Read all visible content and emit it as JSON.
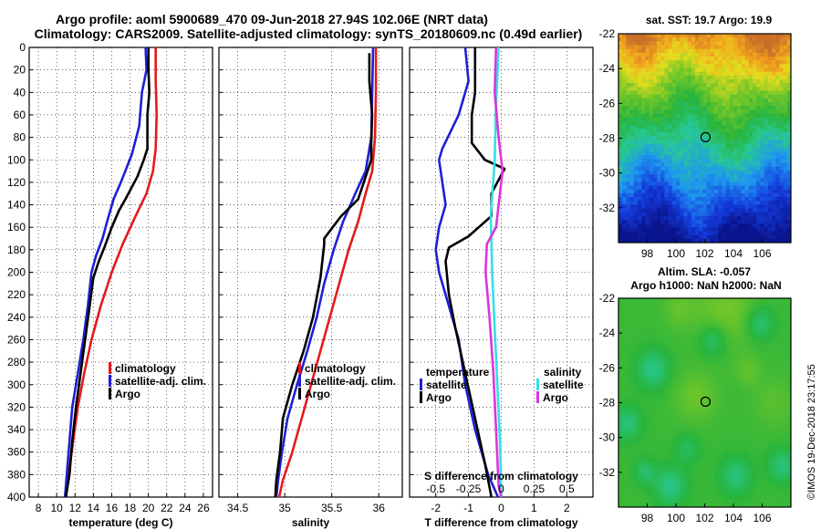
{
  "header": {
    "title_line1": "Argo profile: aoml 5900689_470 09-Jun-2018 27.94S 102.06E (NRT data)",
    "title_line2": "Climatology: CARS2009. Satellite-adjusted climatology: synTS_20180609.nc (0.49d earlier)"
  },
  "credit": "©IMOS 19-Dec-2018 23:17:55",
  "colors": {
    "climatology": "#e41a1c",
    "satellite_adj": "#1f1fd6",
    "argo": "#000000",
    "satellite_s": "#33e0e6",
    "argo_s": "#dd33dd"
  },
  "chart_data": [
    {
      "id": "temperature_profile",
      "type": "line",
      "xlabel": "temperature (deg C)",
      "ylabel": "depth",
      "xlim": [
        7,
        27
      ],
      "ylim": [
        400,
        0
      ],
      "xticks": [
        8,
        10,
        12,
        14,
        16,
        18,
        20,
        22,
        24,
        26
      ],
      "yticks": [
        0,
        20,
        40,
        60,
        80,
        100,
        120,
        140,
        160,
        180,
        200,
        220,
        240,
        260,
        280,
        300,
        320,
        340,
        360,
        380,
        400
      ],
      "legend": [
        "climatology",
        "satellite-adj. clim.",
        "Argo"
      ],
      "series": [
        {
          "name": "climatology",
          "color": "#e41a1c",
          "points": [
            [
              20.8,
              0
            ],
            [
              20.8,
              30
            ],
            [
              20.9,
              60
            ],
            [
              20.8,
              90
            ],
            [
              20.5,
              110
            ],
            [
              19.8,
              130
            ],
            [
              18.6,
              150
            ],
            [
              17.2,
              175
            ],
            [
              16.0,
              200
            ],
            [
              14.8,
              230
            ],
            [
              13.8,
              260
            ],
            [
              13.0,
              290
            ],
            [
              12.3,
              320
            ],
            [
              11.8,
              350
            ],
            [
              11.3,
              380
            ],
            [
              11.0,
              400
            ]
          ]
        },
        {
          "name": "satellite-adj. clim.",
          "color": "#1f1fd6",
          "points": [
            [
              19.7,
              0
            ],
            [
              19.8,
              20
            ],
            [
              19.3,
              40
            ],
            [
              19.0,
              70
            ],
            [
              18.2,
              95
            ],
            [
              17.0,
              120
            ],
            [
              16.2,
              135
            ],
            [
              15.5,
              155
            ],
            [
              15.0,
              170
            ],
            [
              14.3,
              185
            ],
            [
              13.8,
              200
            ],
            [
              13.4,
              230
            ],
            [
              12.9,
              260
            ],
            [
              12.3,
              290
            ],
            [
              11.7,
              320
            ],
            [
              11.4,
              350
            ],
            [
              11.1,
              380
            ],
            [
              10.9,
              400
            ]
          ]
        },
        {
          "name": "Argo",
          "color": "#000000",
          "points": [
            [
              20.0,
              0
            ],
            [
              20.0,
              20
            ],
            [
              20.1,
              40
            ],
            [
              19.9,
              60
            ],
            [
              19.9,
              90
            ],
            [
              19.5,
              100
            ],
            [
              18.8,
              115
            ],
            [
              17.5,
              135
            ],
            [
              16.8,
              145
            ],
            [
              16.0,
              160
            ],
            [
              15.2,
              178
            ],
            [
              14.6,
              190
            ],
            [
              14.0,
              205
            ],
            [
              13.6,
              230
            ],
            [
              13.1,
              260
            ],
            [
              12.6,
              290
            ],
            [
              12.1,
              320
            ],
            [
              11.7,
              350
            ],
            [
              11.4,
              380
            ],
            [
              11.0,
              400
            ]
          ]
        }
      ]
    },
    {
      "id": "salinity_profile",
      "type": "line",
      "xlabel": "salinity",
      "ylabel": "depth",
      "xlim": [
        34.3,
        36.25
      ],
      "ylim": [
        400,
        0
      ],
      "xticks": [
        34.5,
        35,
        35.5,
        36
      ],
      "xticklabels": [
        "34.5",
        "35",
        "35.5",
        "36"
      ],
      "legend": [
        "climatology",
        "satellite-adj. clim.",
        "Argo"
      ],
      "series": [
        {
          "name": "climatology",
          "color": "#e41a1c",
          "points": [
            [
              35.97,
              0
            ],
            [
              35.97,
              40
            ],
            [
              35.96,
              80
            ],
            [
              35.93,
              110
            ],
            [
              35.86,
              130
            ],
            [
              35.78,
              155
            ],
            [
              35.68,
              180
            ],
            [
              35.58,
              210
            ],
            [
              35.48,
              240
            ],
            [
              35.38,
              270
            ],
            [
              35.28,
              300
            ],
            [
              35.18,
              330
            ],
            [
              35.08,
              360
            ],
            [
              34.98,
              385
            ],
            [
              34.94,
              400
            ]
          ]
        },
        {
          "name": "satellite-adj. clim.",
          "color": "#1f1fd6",
          "points": [
            [
              35.94,
              0
            ],
            [
              35.93,
              40
            ],
            [
              35.92,
              80
            ],
            [
              35.86,
              110
            ],
            [
              35.75,
              130
            ],
            [
              35.62,
              155
            ],
            [
              35.52,
              180
            ],
            [
              35.42,
              210
            ],
            [
              35.34,
              240
            ],
            [
              35.24,
              270
            ],
            [
              35.13,
              300
            ],
            [
              35.03,
              330
            ],
            [
              34.97,
              360
            ],
            [
              34.93,
              385
            ],
            [
              34.91,
              400
            ]
          ]
        },
        {
          "name": "Argo",
          "color": "#000000",
          "points": [
            [
              35.9,
              5
            ],
            [
              35.9,
              30
            ],
            [
              35.93,
              60
            ],
            [
              35.92,
              85
            ],
            [
              35.92,
              100
            ],
            [
              35.82,
              125
            ],
            [
              35.78,
              135
            ],
            [
              35.6,
              150
            ],
            [
              35.42,
              170
            ],
            [
              35.42,
              175
            ],
            [
              35.38,
              205
            ],
            [
              35.3,
              240
            ],
            [
              35.2,
              270
            ],
            [
              35.08,
              300
            ],
            [
              34.98,
              330
            ],
            [
              34.95,
              360
            ],
            [
              34.91,
              385
            ],
            [
              34.9,
              400
            ]
          ]
        }
      ]
    },
    {
      "id": "difference_profile",
      "type": "line",
      "xlabel": "T difference from climatology",
      "x2label": "S difference from climatology",
      "ylabel": "depth",
      "xlim": [
        -2.8,
        2.8
      ],
      "ylim": [
        400,
        0
      ],
      "xticks": [
        -2,
        -1,
        0,
        1,
        2
      ],
      "x2ticks": [
        -0.5,
        -0.25,
        0,
        0.25,
        0.5
      ],
      "x2ticklabels": [
        "-0.5",
        "-0.25",
        "0",
        "0.25",
        "0.5"
      ],
      "x2lim": [
        -0.7,
        0.7
      ],
      "legend_temperature": {
        "title": "temperature",
        "entries": [
          "satellite",
          "Argo"
        ]
      },
      "legend_salinity": {
        "title": "salinity",
        "entries": [
          "satellite",
          "Argo"
        ]
      },
      "series": [
        {
          "name": "temperature satellite",
          "axis": "T",
          "color": "#1f1fd6",
          "points": [
            [
              -1.1,
              0
            ],
            [
              -1.0,
              30
            ],
            [
              -1.3,
              60
            ],
            [
              -1.8,
              90
            ],
            [
              -1.9,
              100
            ],
            [
              -1.7,
              140
            ],
            [
              -1.9,
              160
            ],
            [
              -2.0,
              180
            ],
            [
              -1.9,
              200
            ],
            [
              -1.6,
              230
            ],
            [
              -1.3,
              260
            ],
            [
              -1.1,
              300
            ],
            [
              -0.8,
              340
            ],
            [
              -0.4,
              380
            ],
            [
              -0.1,
              400
            ]
          ]
        },
        {
          "name": "temperature Argo",
          "axis": "T",
          "color": "#000000",
          "points": [
            [
              -0.8,
              0
            ],
            [
              -0.8,
              20
            ],
            [
              -0.8,
              40
            ],
            [
              -0.9,
              60
            ],
            [
              -0.9,
              85
            ],
            [
              -0.5,
              100
            ],
            [
              0.1,
              108
            ],
            [
              -0.3,
              130
            ],
            [
              -0.3,
              150
            ],
            [
              -1.0,
              168
            ],
            [
              -1.6,
              178
            ],
            [
              -1.7,
              190
            ],
            [
              -1.6,
              220
            ],
            [
              -1.4,
              250
            ],
            [
              -1.1,
              290
            ],
            [
              -0.8,
              330
            ],
            [
              -0.5,
              370
            ],
            [
              -0.3,
              400
            ]
          ]
        },
        {
          "name": "salinity satellite",
          "axis": "S",
          "color": "#33e0e6",
          "points": [
            [
              -0.02,
              0
            ],
            [
              -0.04,
              50
            ],
            [
              -0.05,
              100
            ],
            [
              -0.08,
              150
            ],
            [
              -0.07,
              200
            ],
            [
              -0.05,
              250
            ],
            [
              -0.03,
              300
            ],
            [
              -0.01,
              350
            ],
            [
              0.0,
              400
            ]
          ]
        },
        {
          "name": "salinity Argo",
          "axis": "S",
          "color": "#dd33dd",
          "points": [
            [
              -0.04,
              0
            ],
            [
              -0.05,
              40
            ],
            [
              -0.02,
              80
            ],
            [
              0.01,
              110
            ],
            [
              -0.04,
              160
            ],
            [
              -0.11,
              175
            ],
            [
              -0.12,
              200
            ],
            [
              -0.09,
              240
            ],
            [
              -0.06,
              290
            ],
            [
              -0.04,
              340
            ],
            [
              -0.02,
              390
            ],
            [
              0.0,
              400
            ]
          ]
        }
      ]
    },
    {
      "id": "sst_map",
      "type": "heatmap",
      "title": "sat. SST: 19.7 Argo: 19.9",
      "xlim": [
        96,
        108
      ],
      "ylim": [
        -34,
        -22
      ],
      "xticks": [
        98,
        100,
        102,
        104,
        106
      ],
      "yticks": [
        -22,
        -24,
        -26,
        -28,
        -30,
        -32
      ],
      "marker": [
        102.06,
        -27.94
      ]
    },
    {
      "id": "sla_map",
      "type": "heatmap",
      "title_line1": "Altim. SLA: -0.057",
      "title_line2": "Argo h1000: NaN h2000: NaN",
      "xlim": [
        96,
        108
      ],
      "ylim": [
        -34,
        -22
      ],
      "xticks": [
        98,
        100,
        102,
        104,
        106
      ],
      "yticks": [
        -22,
        -24,
        -26,
        -28,
        -30,
        -32
      ],
      "marker": [
        102.06,
        -27.94
      ]
    }
  ]
}
